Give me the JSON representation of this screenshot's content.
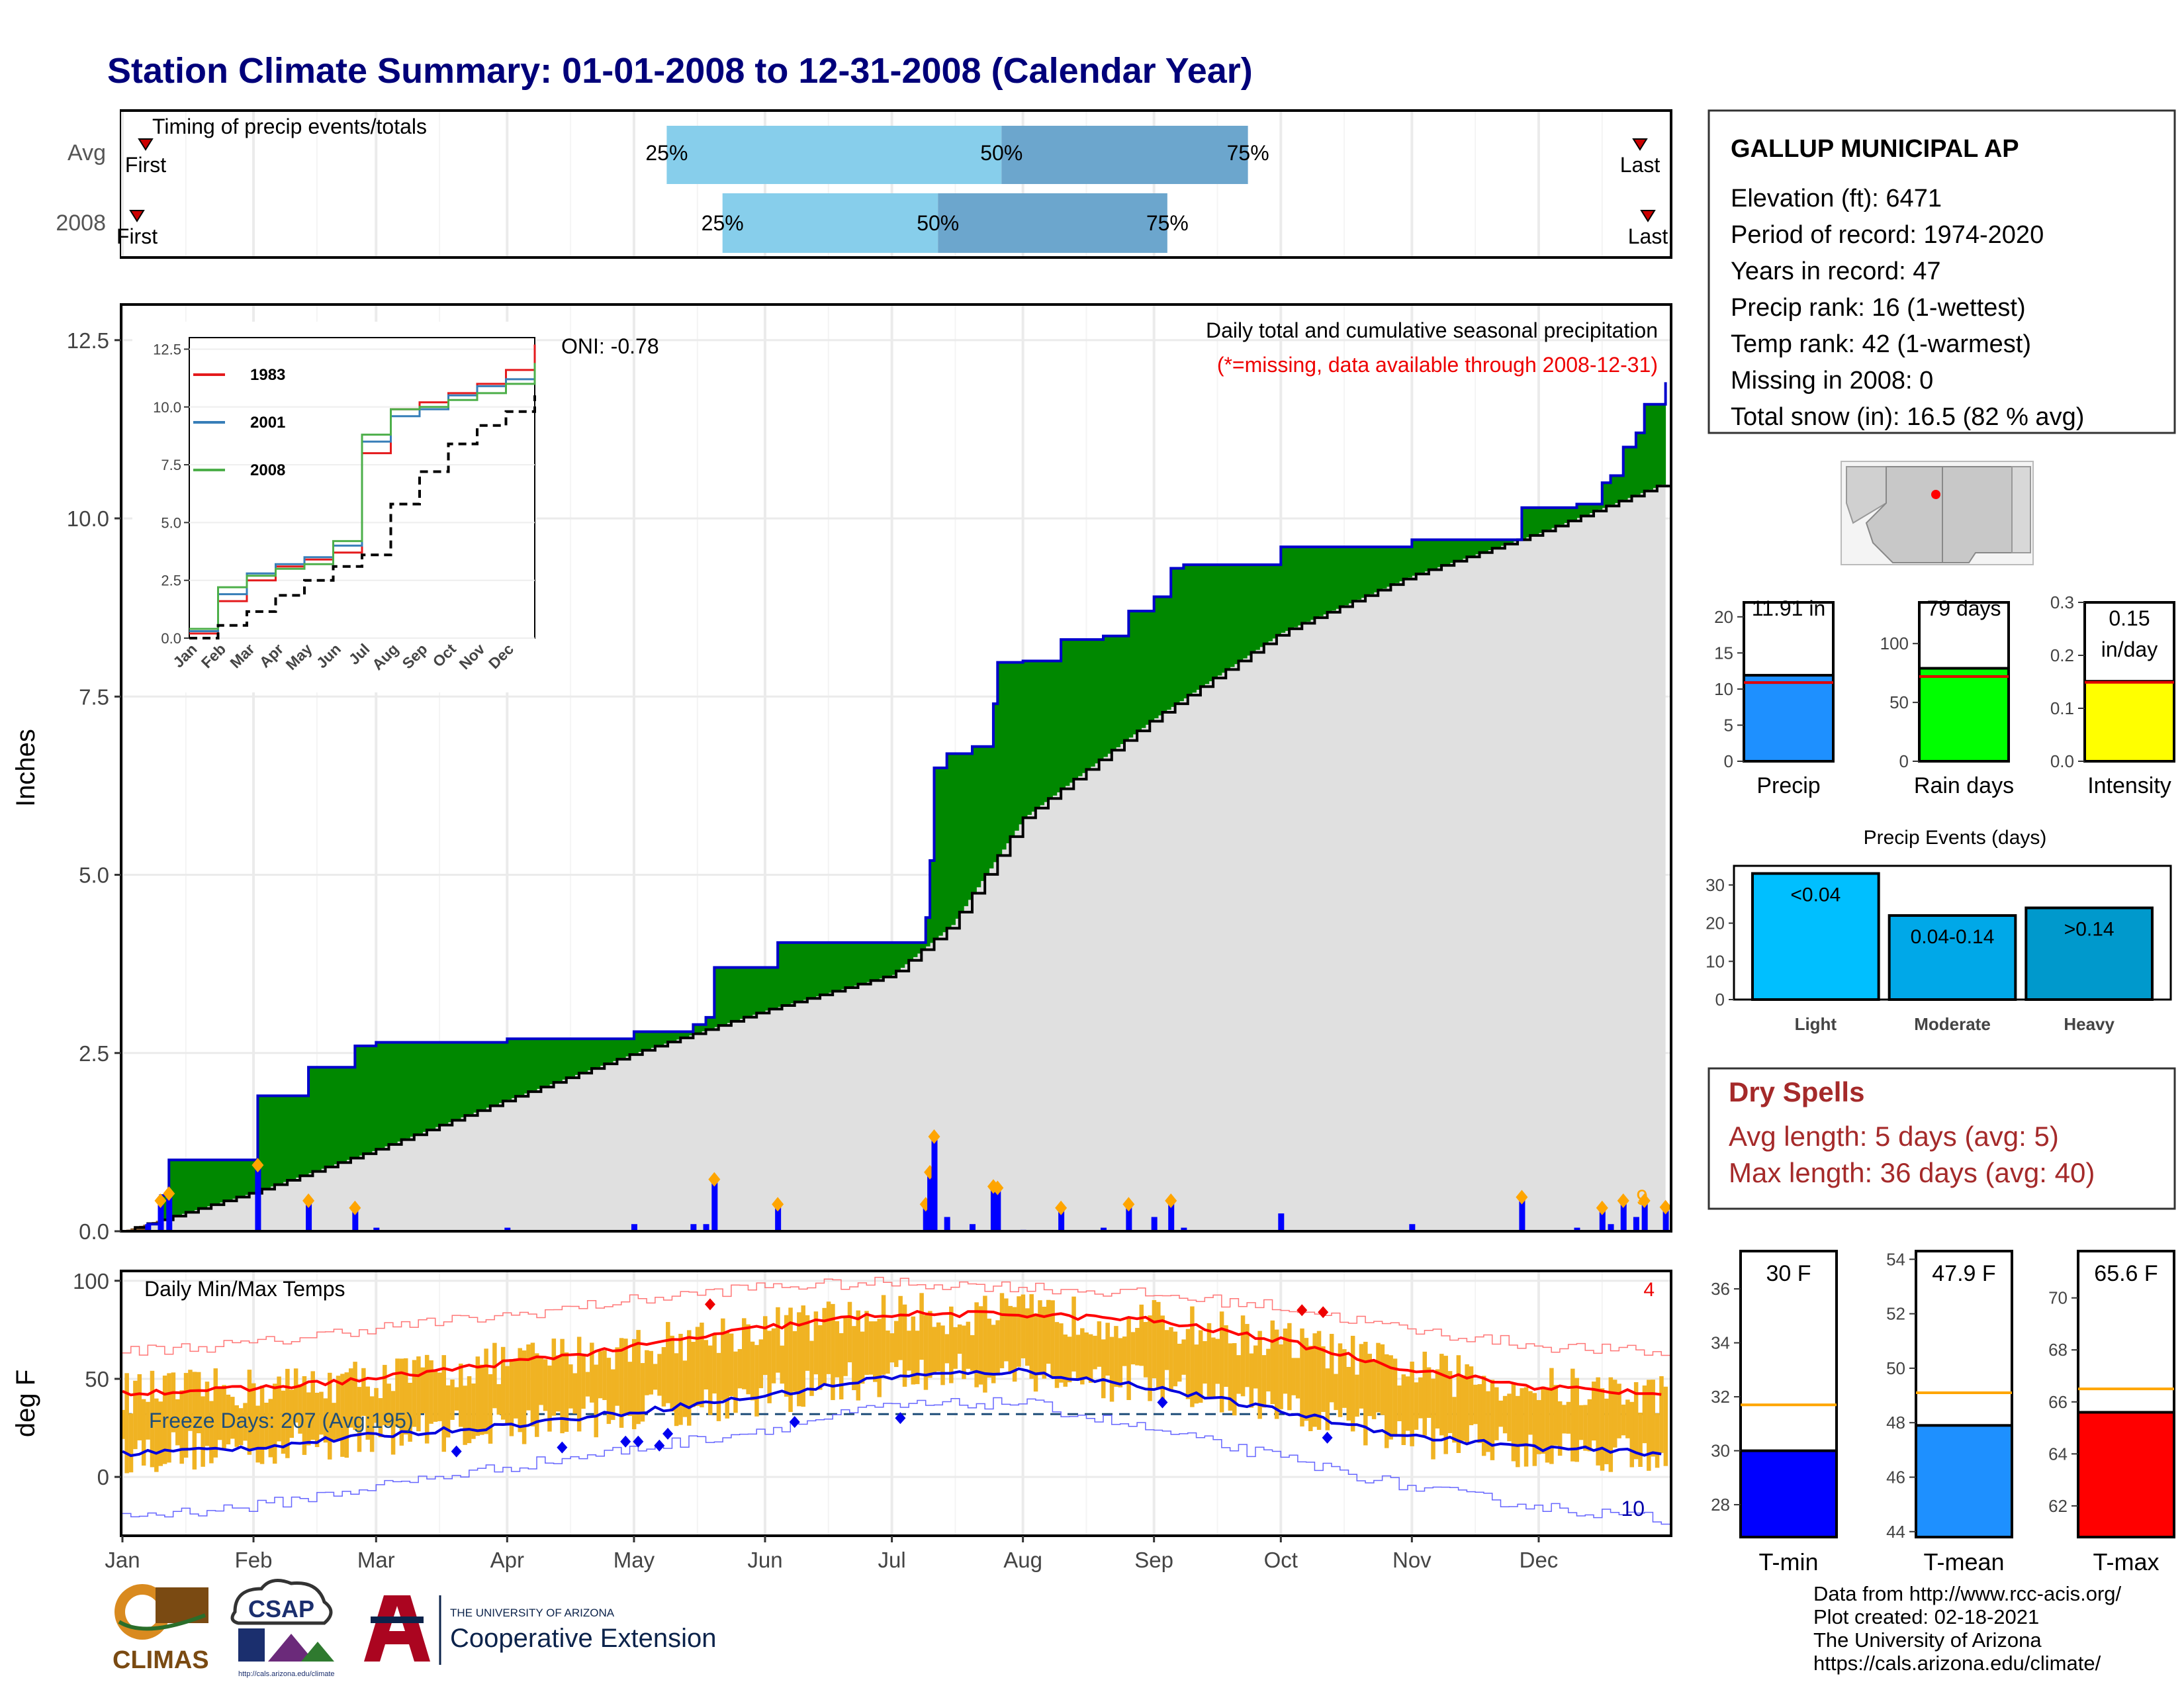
{
  "page": {
    "title": "Station Climate Summary: 01-01-2008 to 12-31-2008 (Calendar Year)"
  },
  "timing": {
    "title": "Timing of precip events/totals",
    "rows": [
      {
        "label": "Avg",
        "first": "First",
        "last": "Last",
        "p25": 0.352,
        "p50": 0.568,
        "p75": 0.727,
        "p25_label": "25%",
        "p50_label": "50%",
        "p75_label": "75%"
      },
      {
        "label": "2008",
        "first": "First",
        "last": "Last",
        "p25": 0.388,
        "p50": 0.527,
        "p75": 0.675,
        "p25_label": "25%",
        "p50_label": "50%",
        "p75_label": "75%"
      }
    ]
  },
  "station": {
    "name": "GALLUP MUNICIPAL AP",
    "lines": [
      "Elevation (ft): 6471",
      "Period of record: 1974-2020",
      "Years in record: 47",
      "Precip rank: 16 (1-wettest)",
      "Temp rank: 42 (1-warmest)",
      "Missing in 2008: 0",
      "Total snow (in): 16.5 (82 % avg)"
    ]
  },
  "precip_panel": {
    "ylabel": "Inches",
    "yticks": [
      "0.0",
      "2.5",
      "5.0",
      "7.5",
      "10.0",
      "12.5"
    ],
    "header": "Daily total and cumulative seasonal precipitation",
    "missing_note": "(*=missing, data available through 2008-12-31)",
    "oni": "ONI: -0.78",
    "snow_count": "9",
    "colors": {
      "above": "#008800",
      "below": "#8B5A2B",
      "climo": "#e0e0e0",
      "cum_line": "#0000cc",
      "daily_bar": "#0000ff",
      "marker": "#ffa500"
    }
  },
  "inset": {
    "yticks": [
      "0.0",
      "2.5",
      "5.0",
      "7.5",
      "10.0",
      "12.5"
    ],
    "xticks": [
      "Jan",
      "Feb",
      "Mar",
      "Apr",
      "May",
      "Jun",
      "Jul",
      "Aug",
      "Sep",
      "Oct",
      "Nov",
      "Dec"
    ],
    "legend": [
      {
        "name": "1983",
        "color": "#e41a1c"
      },
      {
        "name": "2001",
        "color": "#377eb8"
      },
      {
        "name": "2008",
        "color": "#4daf4a"
      }
    ]
  },
  "temp_panel": {
    "ylabel": "deg F",
    "yticks": [
      "0",
      "50",
      "100"
    ],
    "title": "Daily Min/Max Temps",
    "freeze_label": "Freeze Days: 207 (Avg:195)",
    "hot_count": "4",
    "cold_count": "10",
    "months": [
      "Jan",
      "Feb",
      "Mar",
      "Apr",
      "May",
      "Jun",
      "Jul",
      "Aug",
      "Sep",
      "Oct",
      "Nov",
      "Dec"
    ]
  },
  "summary_bars": [
    {
      "label": "Precip",
      "value_label": "11.91 in",
      "value": 11.91,
      "avg": 10.9,
      "ymax": 22,
      "ticks": [
        "0",
        "5",
        "10",
        "15",
        "20"
      ],
      "tick_values": [
        0,
        5,
        10,
        15,
        20
      ],
      "color": "#1e90ff"
    },
    {
      "label": "Rain days",
      "value_label": "79 days",
      "value": 79,
      "avg": 72,
      "ymax": 135,
      "ticks": [
        "0",
        "50",
        "100"
      ],
      "tick_values": [
        0,
        50,
        100
      ],
      "color": "#00ff00"
    },
    {
      "label": "Intensity",
      "value_label": "0.15",
      "value_sub": "in/day",
      "value": 0.151,
      "avg": 0.149,
      "ymax": 0.3,
      "ticks": [
        "0.0",
        "0.1",
        "0.2",
        "0.3"
      ],
      "tick_values": [
        0,
        0.1,
        0.2,
        0.3
      ],
      "color": "#ffff00"
    }
  ],
  "precip_events": {
    "title": "Precip Events (days)",
    "yticks": [
      "0",
      "10",
      "20",
      "30"
    ],
    "bars": [
      {
        "label": "Light",
        "value": 33,
        "text": "<0.04",
        "color": "#00bfff"
      },
      {
        "label": "Moderate",
        "value": 22,
        "text": "0.04-0.14",
        "color": "#00a8e8"
      },
      {
        "label": "Heavy",
        "value": 24,
        "text": ">0.14",
        "color": "#0099cc"
      }
    ]
  },
  "dry_spells": {
    "title": "Dry Spells",
    "avg_length": "Avg length: 5 days (avg: 5)",
    "max_length": "Max length: 36 days (avg: 40)",
    "color": "#a52a2a"
  },
  "temp_summary": [
    {
      "label": "T-min",
      "value_label": "30 F",
      "value": 30,
      "avg": 31.7,
      "ymin": 26.8,
      "ymax": 37.4,
      "ticks": [
        "28",
        "30",
        "32",
        "34",
        "36"
      ],
      "tick_values": [
        28,
        30,
        32,
        34,
        36
      ],
      "color": "#0000ff"
    },
    {
      "label": "T-mean",
      "value_label": "47.9 F",
      "value": 47.9,
      "avg": 49.1,
      "ymin": 43.8,
      "ymax": 54.3,
      "ticks": [
        "44",
        "46",
        "48",
        "50",
        "52",
        "54"
      ],
      "tick_values": [
        44,
        46,
        48,
        50,
        52,
        54
      ],
      "color": "#1e90ff"
    },
    {
      "label": "T-max",
      "value_label": "65.6 F",
      "value": 65.6,
      "avg": 66.5,
      "ymin": 60.8,
      "ymax": 71.8,
      "ticks": [
        "62",
        "64",
        "66",
        "68",
        "70"
      ],
      "tick_values": [
        62,
        64,
        66,
        68,
        70
      ],
      "color": "#ff0000"
    }
  ],
  "footer": {
    "logo_climas": "CLIMAS",
    "logo_csap": "CSAP",
    "logo_csap_url": "http://cals.arizona.edu/climate",
    "ua_small": "THE UNIVERSITY OF ARIZONA",
    "ua_big": "Cooperative Extension",
    "credits": [
      "Data from http://www.rcc-acis.org/",
      "Plot created: 02-18-2021",
      "The University of Arizona",
      "https://cals.arizona.edu/climate/"
    ]
  },
  "chart_data": [
    {
      "type": "area",
      "title": "Daily total and cumulative seasonal precipitation",
      "ylabel": "Inches",
      "ylim": [
        0,
        13
      ],
      "series": [
        {
          "name": "2008",
          "x": [
            "01-01",
            "01-07",
            "01-10",
            "01-12",
            "02-01",
            "02-02",
            "02-10",
            "02-14",
            "02-25",
            "03-01",
            "04-01",
            "05-01",
            "05-15",
            "05-18",
            "05-20",
            "05-21",
            "06-01",
            "06-04",
            "07-01",
            "07-09",
            "07-10",
            "07-11",
            "07-14",
            "07-20",
            "07-25",
            "07-26",
            "08-01",
            "08-10",
            "08-20",
            "08-26",
            "09-01",
            "09-05",
            "09-08",
            "10-01",
            "10-10",
            "11-01",
            "11-15",
            "11-25",
            "11-27",
            "12-01",
            "12-10",
            "12-16",
            "12-18",
            "12-21",
            "12-24",
            "12-26",
            "12-31"
          ],
          "values": [
            0.0,
            0.1,
            0.5,
            1.0,
            1.0,
            1.9,
            1.9,
            2.3,
            2.6,
            2.65,
            2.7,
            2.8,
            2.9,
            3.0,
            3.7,
            3.7,
            3.7,
            4.05,
            4.05,
            4.4,
            5.2,
            6.5,
            6.7,
            6.8,
            7.4,
            7.98,
            8.0,
            8.3,
            8.35,
            8.7,
            8.9,
            9.3,
            9.35,
            9.6,
            9.6,
            9.7,
            9.7,
            9.7,
            10.15,
            10.15,
            10.2,
            10.5,
            10.6,
            11.0,
            11.2,
            11.6,
            11.91
          ]
        },
        {
          "name": "average",
          "x": [
            "01-01",
            "02-01",
            "03-01",
            "04-01",
            "05-01",
            "06-01",
            "07-01",
            "07-15",
            "08-01",
            "09-01",
            "10-01",
            "11-01",
            "12-01",
            "12-31"
          ],
          "values": [
            0.0,
            0.55,
            1.15,
            1.85,
            2.5,
            3.1,
            3.6,
            4.3,
            5.8,
            7.2,
            8.4,
            9.2,
            9.8,
            10.5
          ]
        }
      ]
    },
    {
      "type": "line",
      "title": "",
      "ylim": [
        0,
        13
      ],
      "series": [
        {
          "name": "1983",
          "x": [
            1,
            2,
            3,
            4,
            5,
            6,
            7,
            8,
            9,
            10,
            11,
            12,
            13
          ],
          "values": [
            0.2,
            1.6,
            2.5,
            3.1,
            3.4,
            3.7,
            8.0,
            9.9,
            10.2,
            10.6,
            11.0,
            11.6,
            12.7
          ]
        },
        {
          "name": "2001",
          "x": [
            1,
            2,
            3,
            4,
            5,
            6,
            7,
            8,
            9,
            10,
            11,
            12,
            13
          ],
          "values": [
            0.3,
            1.9,
            2.8,
            3.2,
            3.5,
            4.0,
            8.5,
            9.6,
            9.9,
            10.5,
            10.9,
            11.2,
            11.3
          ]
        },
        {
          "name": "2008",
          "x": [
            1,
            2,
            3,
            4,
            5,
            6,
            7,
            8,
            9,
            10,
            11,
            12,
            13
          ],
          "values": [
            0.4,
            2.2,
            2.7,
            3.0,
            3.2,
            4.2,
            8.8,
            9.9,
            10.0,
            10.3,
            10.6,
            11.0,
            11.9
          ]
        },
        {
          "name": "average",
          "x": [
            1,
            2,
            3,
            4,
            5,
            6,
            7,
            8,
            9,
            10,
            11,
            12,
            13
          ],
          "values": [
            0.0,
            0.55,
            1.15,
            1.85,
            2.5,
            3.1,
            3.6,
            5.8,
            7.2,
            8.4,
            9.2,
            9.8,
            10.5
          ]
        }
      ]
    },
    {
      "type": "line",
      "title": "Daily Min/Max Temps",
      "ylabel": "deg F",
      "ylim": [
        -30,
        105
      ],
      "series": [
        {
          "name": "normal max",
          "x": [
            1,
            32,
            60,
            91,
            121,
            152,
            182,
            213,
            244,
            274,
            305,
            335,
            366
          ],
          "values": [
            43,
            45,
            50,
            58,
            66,
            76,
            83,
            83,
            80,
            70,
            55,
            46,
            42
          ]
        },
        {
          "name": "normal min",
          "x": [
            1,
            32,
            60,
            91,
            121,
            152,
            182,
            213,
            244,
            274,
            305,
            335,
            366
          ],
          "values": [
            12,
            15,
            21,
            26,
            33,
            41,
            51,
            54,
            46,
            34,
            21,
            15,
            12
          ]
        },
        {
          "name": "record max",
          "x": [
            1,
            32,
            60,
            91,
            121,
            152,
            182,
            213,
            244,
            274,
            305,
            335,
            366
          ],
          "values": [
            64,
            68,
            76,
            82,
            90,
            97,
            99,
            97,
            93,
            87,
            75,
            67,
            63
          ]
        },
        {
          "name": "record min",
          "x": [
            1,
            32,
            60,
            91,
            121,
            152,
            182,
            213,
            244,
            274,
            305,
            335,
            366
          ],
          "values": [
            -20,
            -15,
            -5,
            5,
            14,
            24,
            36,
            38,
            24,
            10,
            -5,
            -15,
            -22
          ]
        }
      ]
    },
    {
      "type": "bar",
      "title": "",
      "categories": [
        "Precip",
        "Rain days",
        "Intensity"
      ],
      "values": [
        11.91,
        79,
        0.15
      ]
    },
    {
      "type": "bar",
      "title": "Precip Events (days)",
      "categories": [
        "Light",
        "Moderate",
        "Heavy"
      ],
      "values": [
        33,
        22,
        24
      ]
    },
    {
      "type": "bar",
      "title": "",
      "categories": [
        "T-min",
        "T-mean",
        "T-max"
      ],
      "values": [
        30,
        47.9,
        65.6
      ]
    }
  ]
}
